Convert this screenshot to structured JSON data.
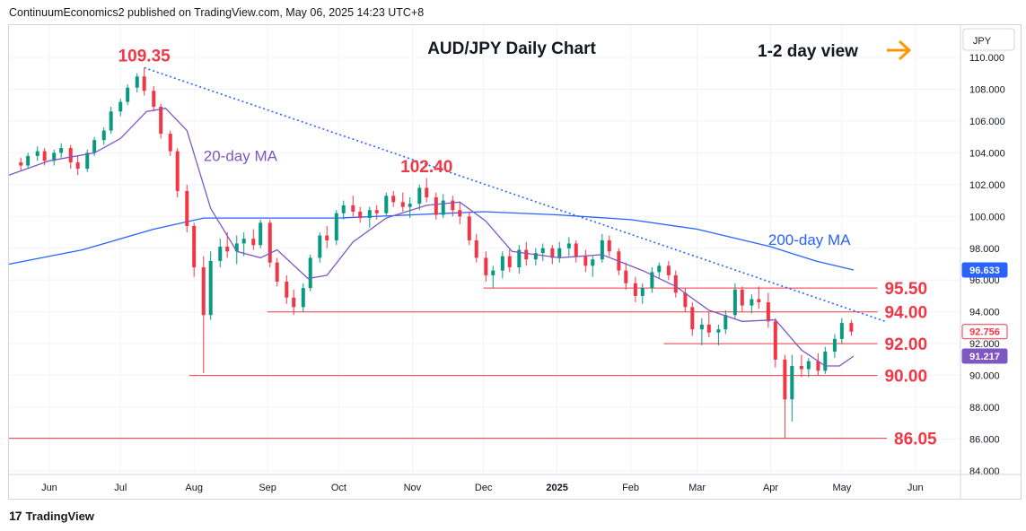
{
  "publisher_line": "ContinuumEconomics2 published on TradingView.com, May 06, 2025 14:23 UTC+8",
  "brand": {
    "logo": "17",
    "name": "TradingView"
  },
  "colors": {
    "up": "#089981",
    "down": "#f23645",
    "ma20": "#7e57c2",
    "ma200": "#2962ff",
    "levels": "#f23645",
    "annotation_red": "#f23645",
    "annotation_blue": "#2962ff",
    "trendline": "#2962ff",
    "arrow": "#ff9800",
    "grid": "#f0f3fa",
    "price_label": "#f23645",
    "ma20_label": "#2962ff",
    "ma200_label": "#2962ff"
  },
  "chart_data": {
    "type": "candlestick",
    "title": "AUD/JPY Daily Chart",
    "view_note": "1-2 day view",
    "currency_label": "JPY",
    "y_ticks": [
      "110.000",
      "108.000",
      "106.000",
      "104.000",
      "102.000",
      "100.000",
      "98.000",
      "96.000",
      "94.000",
      "92.000",
      "90.000",
      "88.000",
      "86.000",
      "84.000"
    ],
    "ylim": [
      84,
      111.5
    ],
    "x_ticks": [
      "Jun",
      "Jul",
      "Aug",
      "Sep",
      "Oct",
      "Nov",
      "Dec",
      "2025",
      "Feb",
      "Mar",
      "Apr",
      "May",
      "Jun"
    ],
    "levels": [
      {
        "label": "95.50",
        "value": 95.5,
        "from": "2024-12-01",
        "to": "2025-05-16"
      },
      {
        "label": "94.00",
        "value": 94.0,
        "from": "2024-09-01",
        "to": "2025-05-16"
      },
      {
        "label": "92.00",
        "value": 92.0,
        "from": "2025-02-15",
        "to": "2025-05-16"
      },
      {
        "label": "90.00",
        "value": 90.0,
        "from": "2024-07-30",
        "to": "2025-05-16"
      },
      {
        "label": "86.05",
        "value": 86.05,
        "from": "2024-05-15",
        "to": "2025-05-20"
      }
    ],
    "annotations": [
      {
        "label": "109.35",
        "date": "2024-07-11",
        "value": 109.35
      },
      {
        "label": "102.40",
        "date": "2024-11-07",
        "value": 102.4
      },
      {
        "label": "20-day MA",
        "date": "2024-08-05",
        "value": 103.5
      },
      {
        "label": "200-day MA",
        "date": "2025-03-31",
        "value": 98.2
      }
    ],
    "trendline": {
      "from": {
        "date": "2024-07-11",
        "value": 109.35
      },
      "to": {
        "date": "2025-05-08",
        "value": 93.0
      }
    },
    "price_labels": [
      {
        "label": "96.633",
        "value": 96.633,
        "series": "200-day MA"
      },
      {
        "label": "92.756",
        "value": 92.756,
        "series": "last"
      },
      {
        "label": "91.217",
        "value": 91.217,
        "series": "20-day MA"
      }
    ],
    "candles": [
      [
        "2024-05-20",
        103.4,
        103.7,
        102.9,
        103.2
      ],
      [
        "2024-05-23",
        103.2,
        104.0,
        103.0,
        103.8
      ],
      [
        "2024-05-27",
        103.8,
        104.4,
        103.5,
        104.1
      ],
      [
        "2024-05-30",
        104.1,
        104.3,
        103.2,
        103.5
      ],
      [
        "2024-06-03",
        103.5,
        104.2,
        103.2,
        104.0
      ],
      [
        "2024-06-06",
        104.0,
        104.6,
        103.7,
        104.3
      ],
      [
        "2024-06-10",
        104.3,
        104.5,
        103.0,
        103.4
      ],
      [
        "2024-06-13",
        103.4,
        103.8,
        102.6,
        103.0
      ],
      [
        "2024-06-17",
        103.0,
        104.2,
        102.8,
        104.0
      ],
      [
        "2024-06-20",
        104.0,
        105.0,
        103.8,
        104.8
      ],
      [
        "2024-06-24",
        104.8,
        105.6,
        104.5,
        105.4
      ],
      [
        "2024-06-27",
        105.4,
        106.9,
        105.2,
        106.6
      ],
      [
        "2024-07-01",
        106.6,
        107.4,
        106.3,
        107.2
      ],
      [
        "2024-07-04",
        107.2,
        108.3,
        107.0,
        108.1
      ],
      [
        "2024-07-08",
        108.1,
        109.0,
        107.8,
        108.8
      ],
      [
        "2024-07-11",
        108.8,
        109.35,
        107.6,
        107.9
      ],
      [
        "2024-07-15",
        107.9,
        108.2,
        106.6,
        106.9
      ],
      [
        "2024-07-18",
        106.9,
        107.1,
        104.9,
        105.2
      ],
      [
        "2024-07-22",
        105.2,
        105.4,
        103.8,
        104.1
      ],
      [
        "2024-07-25",
        104.1,
        104.3,
        101.2,
        101.6
      ],
      [
        "2024-07-29",
        101.6,
        102.0,
        99.0,
        99.4
      ],
      [
        "2024-08-01",
        99.4,
        99.6,
        96.2,
        96.8
      ],
      [
        "2024-08-05",
        96.8,
        97.5,
        90.15,
        93.8
      ],
      [
        "2024-08-08",
        93.8,
        97.8,
        93.5,
        97.2
      ],
      [
        "2024-08-12",
        97.2,
        98.6,
        96.8,
        98.1
      ],
      [
        "2024-08-15",
        98.1,
        99.0,
        97.4,
        97.8
      ],
      [
        "2024-08-19",
        97.8,
        98.8,
        97.0,
        98.3
      ],
      [
        "2024-08-22",
        98.3,
        99.0,
        97.5,
        98.6
      ],
      [
        "2024-08-26",
        98.6,
        99.2,
        97.9,
        98.2
      ],
      [
        "2024-08-29",
        98.2,
        99.8,
        98.0,
        99.6
      ],
      [
        "2024-09-02",
        99.6,
        99.8,
        96.8,
        97.1
      ],
      [
        "2024-09-05",
        97.1,
        97.4,
        95.6,
        95.9
      ],
      [
        "2024-09-09",
        95.9,
        96.3,
        94.5,
        94.9
      ],
      [
        "2024-09-12",
        94.9,
        95.4,
        93.8,
        94.3
      ],
      [
        "2024-09-16",
        94.3,
        95.8,
        94.0,
        95.5
      ],
      [
        "2024-09-19",
        95.5,
        97.6,
        95.3,
        97.4
      ],
      [
        "2024-09-23",
        97.4,
        99.0,
        97.1,
        98.8
      ],
      [
        "2024-09-26",
        98.8,
        99.4,
        98.0,
        98.5
      ],
      [
        "2024-09-30",
        98.5,
        100.4,
        98.2,
        100.2
      ],
      [
        "2024-10-03",
        100.2,
        101.0,
        99.8,
        100.7
      ],
      [
        "2024-10-07",
        100.7,
        101.3,
        100.0,
        100.3
      ],
      [
        "2024-10-10",
        100.3,
        100.6,
        99.6,
        99.9
      ],
      [
        "2024-10-14",
        99.9,
        100.6,
        99.3,
        100.4
      ],
      [
        "2024-10-17",
        100.4,
        100.7,
        99.8,
        100.2
      ],
      [
        "2024-10-21",
        100.2,
        101.5,
        100.0,
        101.3
      ],
      [
        "2024-10-24",
        101.3,
        101.6,
        100.6,
        100.9
      ],
      [
        "2024-10-28",
        100.9,
        101.5,
        100.3,
        100.6
      ],
      [
        "2024-10-31",
        100.6,
        101.2,
        99.9,
        100.8
      ],
      [
        "2024-11-04",
        100.8,
        102.0,
        100.4,
        101.8
      ],
      [
        "2024-11-07",
        101.8,
        102.4,
        100.9,
        101.2
      ],
      [
        "2024-11-11",
        101.2,
        101.5,
        99.8,
        100.1
      ],
      [
        "2024-11-14",
        100.1,
        101.4,
        99.9,
        101.0
      ],
      [
        "2024-11-18",
        101.0,
        101.3,
        100.0,
        100.4
      ],
      [
        "2024-11-21",
        100.4,
        100.9,
        99.5,
        100.0
      ],
      [
        "2024-11-25",
        100.0,
        100.3,
        98.2,
        98.5
      ],
      [
        "2024-11-28",
        98.5,
        98.9,
        97.1,
        97.4
      ],
      [
        "2024-12-02",
        97.4,
        97.8,
        95.9,
        96.3
      ],
      [
        "2024-12-05",
        96.3,
        96.9,
        95.5,
        96.6
      ],
      [
        "2024-12-09",
        96.6,
        97.8,
        96.1,
        97.5
      ],
      [
        "2024-12-12",
        97.5,
        98.0,
        96.5,
        96.8
      ],
      [
        "2024-12-16",
        96.8,
        98.2,
        96.4,
        97.9
      ],
      [
        "2024-12-19",
        97.9,
        98.4,
        96.9,
        97.3
      ],
      [
        "2024-12-23",
        97.3,
        98.0,
        96.9,
        97.7
      ],
      [
        "2024-12-26",
        97.7,
        98.3,
        97.2,
        98.0
      ],
      [
        "2024-12-30",
        98.0,
        98.2,
        97.0,
        97.4
      ],
      [
        "2025-01-02",
        97.4,
        98.4,
        97.1,
        98.0
      ],
      [
        "2025-01-06",
        98.0,
        98.7,
        97.5,
        98.3
      ],
      [
        "2025-01-09",
        98.3,
        98.5,
        97.1,
        97.5
      ],
      [
        "2025-01-13",
        97.5,
        97.9,
        96.5,
        96.9
      ],
      [
        "2025-01-16",
        96.9,
        97.5,
        96.2,
        97.3
      ],
      [
        "2025-01-20",
        97.3,
        98.9,
        97.1,
        98.5
      ],
      [
        "2025-01-23",
        98.5,
        98.8,
        97.5,
        97.8
      ],
      [
        "2025-01-27",
        97.8,
        98.0,
        96.3,
        96.6
      ],
      [
        "2025-01-30",
        96.6,
        97.1,
        95.4,
        95.8
      ],
      [
        "2025-02-03",
        95.8,
        96.2,
        94.6,
        95.0
      ],
      [
        "2025-02-06",
        95.0,
        95.8,
        94.5,
        95.5
      ],
      [
        "2025-02-10",
        95.5,
        96.8,
        95.2,
        96.5
      ],
      [
        "2025-02-13",
        96.5,
        97.1,
        96.1,
        96.9
      ],
      [
        "2025-02-17",
        96.9,
        97.2,
        96.0,
        96.3
      ],
      [
        "2025-02-20",
        96.3,
        96.6,
        94.9,
        95.2
      ],
      [
        "2025-02-24",
        95.2,
        95.5,
        94.0,
        94.3
      ],
      [
        "2025-02-27",
        94.3,
        94.6,
        92.5,
        92.9
      ],
      [
        "2025-03-03",
        92.9,
        93.6,
        91.9,
        93.2
      ],
      [
        "2025-03-06",
        93.2,
        94.0,
        92.4,
        92.7
      ],
      [
        "2025-03-10",
        92.7,
        93.2,
        91.9,
        92.9
      ],
      [
        "2025-03-13",
        92.9,
        94.1,
        92.6,
        93.8
      ],
      [
        "2025-03-17",
        93.8,
        95.8,
        93.6,
        95.4
      ],
      [
        "2025-03-20",
        95.4,
        95.6,
        94.0,
        94.4
      ],
      [
        "2025-03-24",
        94.4,
        95.1,
        93.9,
        94.8
      ],
      [
        "2025-03-27",
        94.8,
        95.6,
        94.2,
        94.6
      ],
      [
        "2025-03-31",
        94.6,
        95.2,
        93.0,
        93.4
      ],
      [
        "2025-04-03",
        93.4,
        93.6,
        90.5,
        91.0
      ],
      [
        "2025-04-07",
        91.0,
        91.3,
        86.05,
        88.5
      ],
      [
        "2025-04-10",
        88.5,
        91.3,
        87.1,
        90.6
      ],
      [
        "2025-04-14",
        90.6,
        91.3,
        89.9,
        90.4
      ],
      [
        "2025-04-17",
        90.4,
        91.1,
        89.9,
        90.9
      ],
      [
        "2025-04-21",
        90.9,
        91.4,
        90.0,
        90.3
      ],
      [
        "2025-04-24",
        90.3,
        91.8,
        90.1,
        91.5
      ],
      [
        "2025-04-28",
        91.5,
        92.6,
        91.1,
        92.3
      ],
      [
        "2025-05-01",
        92.3,
        93.6,
        92.0,
        93.3
      ],
      [
        "2025-05-05",
        93.3,
        93.5,
        92.5,
        92.756
      ]
    ],
    "ma20": [
      [
        "2024-05-15",
        102.6
      ],
      [
        "2024-06-01",
        103.5
      ],
      [
        "2024-06-20",
        104.0
      ],
      [
        "2024-07-01",
        104.9
      ],
      [
        "2024-07-12",
        106.6
      ],
      [
        "2024-07-20",
        106.8
      ],
      [
        "2024-07-29",
        105.4
      ],
      [
        "2024-08-08",
        100.5
      ],
      [
        "2024-08-19",
        97.8
      ],
      [
        "2024-08-29",
        97.4
      ],
      [
        "2024-09-05",
        97.9
      ],
      [
        "2024-09-18",
        96.1
      ],
      [
        "2024-09-26",
        96.3
      ],
      [
        "2024-10-07",
        98.4
      ],
      [
        "2024-10-21",
        99.9
      ],
      [
        "2024-11-07",
        100.7
      ],
      [
        "2024-11-21",
        100.9
      ],
      [
        "2024-12-02",
        99.7
      ],
      [
        "2024-12-13",
        97.8
      ],
      [
        "2025-01-02",
        97.4
      ],
      [
        "2025-01-20",
        97.6
      ],
      [
        "2025-02-06",
        96.6
      ],
      [
        "2025-02-20",
        95.6
      ],
      [
        "2025-03-06",
        94.1
      ],
      [
        "2025-03-20",
        93.4
      ],
      [
        "2025-04-03",
        93.5
      ],
      [
        "2025-04-14",
        91.6
      ],
      [
        "2025-04-24",
        90.6
      ],
      [
        "2025-04-30",
        90.6
      ],
      [
        "2025-05-06",
        91.217
      ]
    ],
    "ma200": [
      [
        "2024-05-15",
        97.0
      ],
      [
        "2024-06-15",
        97.9
      ],
      [
        "2024-07-15",
        99.2
      ],
      [
        "2024-08-05",
        99.9
      ],
      [
        "2024-09-01",
        99.9
      ],
      [
        "2024-10-01",
        99.9
      ],
      [
        "2024-11-01",
        100.1
      ],
      [
        "2024-12-01",
        100.3
      ],
      [
        "2025-01-01",
        100.1
      ],
      [
        "2025-02-01",
        99.8
      ],
      [
        "2025-03-01",
        99.2
      ],
      [
        "2025-04-01",
        98.1
      ],
      [
        "2025-04-20",
        97.2
      ],
      [
        "2025-05-06",
        96.633
      ]
    ]
  }
}
